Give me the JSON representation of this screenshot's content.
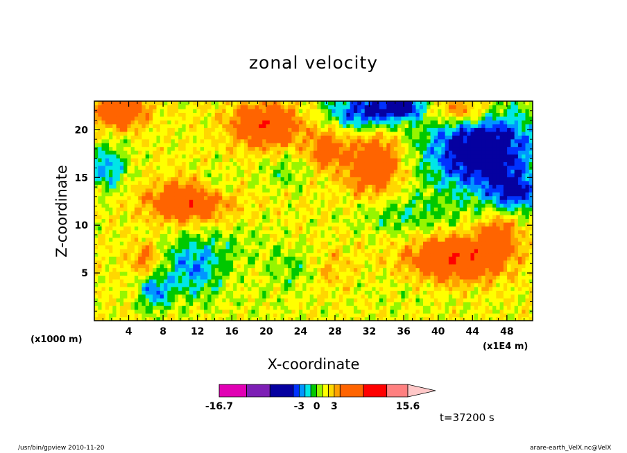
{
  "chart_data": {
    "type": "heatmap",
    "title": "zonal velocity",
    "xlabel": "X-coordinate",
    "ylabel": "Z-coordinate",
    "x_unit_left": "(x1000 m)",
    "x_unit_right": "(x1E4 m)",
    "xlim": [
      0,
      51
    ],
    "ylim": [
      0,
      23
    ],
    "xticks": [
      4,
      8,
      12,
      16,
      20,
      24,
      28,
      32,
      36,
      40,
      44,
      48
    ],
    "yticks": [
      5,
      10,
      15,
      20
    ],
    "colorbar": {
      "min": -16.7,
      "max": 15.6,
      "tick_labels": [
        "-16.7",
        "-3",
        "0",
        "3",
        "15.6"
      ],
      "tick_values": [
        -16.7,
        -3,
        0,
        3,
        15.6
      ],
      "levels": [
        -16.7,
        -12,
        -8,
        -4,
        -3,
        -2,
        -1,
        0,
        1,
        2,
        3,
        4,
        8,
        12,
        15.6
      ],
      "colors": [
        "#e100b4",
        "#7d1fb5",
        "#0500a0",
        "#0032ff",
        "#0096ff",
        "#00e6e6",
        "#00c800",
        "#96f500",
        "#ffff00",
        "#ffd700",
        "#ffa000",
        "#ff6400",
        "#ff0000",
        "#ff8080"
      ],
      "extend": "max",
      "extend_color": "#ffc8c8"
    },
    "features": [
      {
        "x": 11,
        "z": 12.5,
        "sx": 3.2,
        "sz": 1.4,
        "v": 6
      },
      {
        "x": 20,
        "z": 20.5,
        "sx": 2.8,
        "sz": 1.6,
        "v": 5.5
      },
      {
        "x": 32.5,
        "z": 16.5,
        "sx": 2.2,
        "sz": 2.2,
        "v": 5.5
      },
      {
        "x": 42,
        "z": 6.5,
        "sx": 3.8,
        "sz": 1.6,
        "v": 6.5
      },
      {
        "x": 47,
        "z": 9,
        "sx": 1.6,
        "sz": 1.4,
        "v": 4
      },
      {
        "x": 3,
        "z": 22,
        "sx": 2,
        "sz": 1.2,
        "v": 6
      },
      {
        "x": 43,
        "z": 22,
        "sx": 2.5,
        "sz": 1.2,
        "v": 5
      },
      {
        "x": 27,
        "z": 18,
        "sx": 1.4,
        "sz": 1.4,
        "v": 4
      },
      {
        "x": 6,
        "z": 6.5,
        "sx": 1.2,
        "sz": 1.2,
        "v": 3
      },
      {
        "x": 27,
        "z": 5.5,
        "sx": 2,
        "sz": 1.5,
        "v": 2
      },
      {
        "x": 45,
        "z": 18,
        "sx": 4.5,
        "sz": 3.2,
        "v": -8
      },
      {
        "x": 49,
        "z": 13.5,
        "sx": 2,
        "sz": 1.3,
        "v": -5
      },
      {
        "x": 31.5,
        "z": 22,
        "sx": 3,
        "sz": 1.4,
        "v": -6
      },
      {
        "x": 36,
        "z": 22.5,
        "sx": 1.6,
        "sz": 0.8,
        "v": -6
      },
      {
        "x": 11.5,
        "z": 5.5,
        "sx": 2.5,
        "sz": 2.2,
        "v": -4
      },
      {
        "x": 7,
        "z": 3,
        "sx": 1.3,
        "sz": 1.3,
        "v": -4
      },
      {
        "x": 1.5,
        "z": 16,
        "sx": 1.6,
        "sz": 1.6,
        "v": -4
      },
      {
        "x": 24,
        "z": 5.5,
        "sx": 2.5,
        "sz": 1.5,
        "v": -2
      },
      {
        "x": 36,
        "z": 11,
        "sx": 4,
        "sz": 1.5,
        "v": -2
      },
      {
        "x": 14,
        "z": 14,
        "sx": 1.5,
        "sz": 1.2,
        "v": -2
      },
      {
        "x": 22,
        "z": 15.5,
        "sx": 2,
        "sz": 1.2,
        "v": -1.5
      },
      {
        "x": 16,
        "z": 8,
        "sx": 4,
        "sz": 1.5,
        "v": -1
      },
      {
        "x": 37,
        "z": 3.5,
        "sx": 5,
        "sz": 2,
        "v": -0.5
      },
      {
        "x": 20,
        "z": 1.5,
        "sx": 3,
        "sz": 1.5,
        "v": -0.5
      }
    ]
  },
  "timestamp": "t=37200 s",
  "footer_left": "/usr/bin/gpview   2010-11-20",
  "footer_right": "arare-earth_VelX.nc@VelX"
}
